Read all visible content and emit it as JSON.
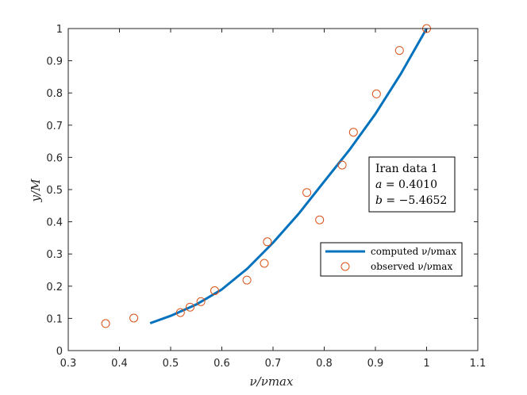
{
  "chart_data": {
    "type": "scatter",
    "title": "",
    "xlabel": "ν/νmax",
    "ylabel": "y/M",
    "xlim": [
      0.3,
      1.1
    ],
    "ylim": [
      0,
      1
    ],
    "x_ticks": [
      "0.3",
      "0.4",
      "0.5",
      "0.6",
      "0.7",
      "0.8",
      "0.9",
      "1",
      "1.1"
    ],
    "y_ticks": [
      "0",
      "0.1",
      "0.2",
      "0.3",
      "0.4",
      "0.5",
      "0.6",
      "0.7",
      "0.8",
      "0.9",
      "1"
    ],
    "grid": false,
    "legend_position": "middle-right",
    "colors": {
      "computed": "#0072BD",
      "observed": "#D95319"
    },
    "series": [
      {
        "name": "computed ν/νmax",
        "kind": "line",
        "x": [
          0.46,
          0.5,
          0.55,
          0.6,
          0.65,
          0.7,
          0.75,
          0.8,
          0.85,
          0.9,
          0.95,
          1.0
        ],
        "y": [
          0.085,
          0.108,
          0.143,
          0.19,
          0.255,
          0.335,
          0.425,
          0.525,
          0.625,
          0.735,
          0.86,
          1.0
        ]
      },
      {
        "name": "observed ν/νmax",
        "kind": "scatter",
        "x": [
          0.373,
          0.428,
          0.519,
          0.538,
          0.559,
          0.586,
          0.649,
          0.683,
          0.689,
          0.766,
          0.791,
          0.835,
          0.857,
          0.902,
          0.947,
          1.0
        ],
        "y": [
          0.084,
          0.101,
          0.118,
          0.135,
          0.152,
          0.186,
          0.219,
          0.271,
          0.338,
          0.491,
          0.406,
          0.576,
          0.678,
          0.797,
          0.932,
          1.0
        ]
      }
    ],
    "annotation": {
      "line1": "Iran data 1",
      "a_name": "a",
      "a_value": "= 0.4010",
      "b_name": "b",
      "b_value": "= −5.4652"
    }
  }
}
